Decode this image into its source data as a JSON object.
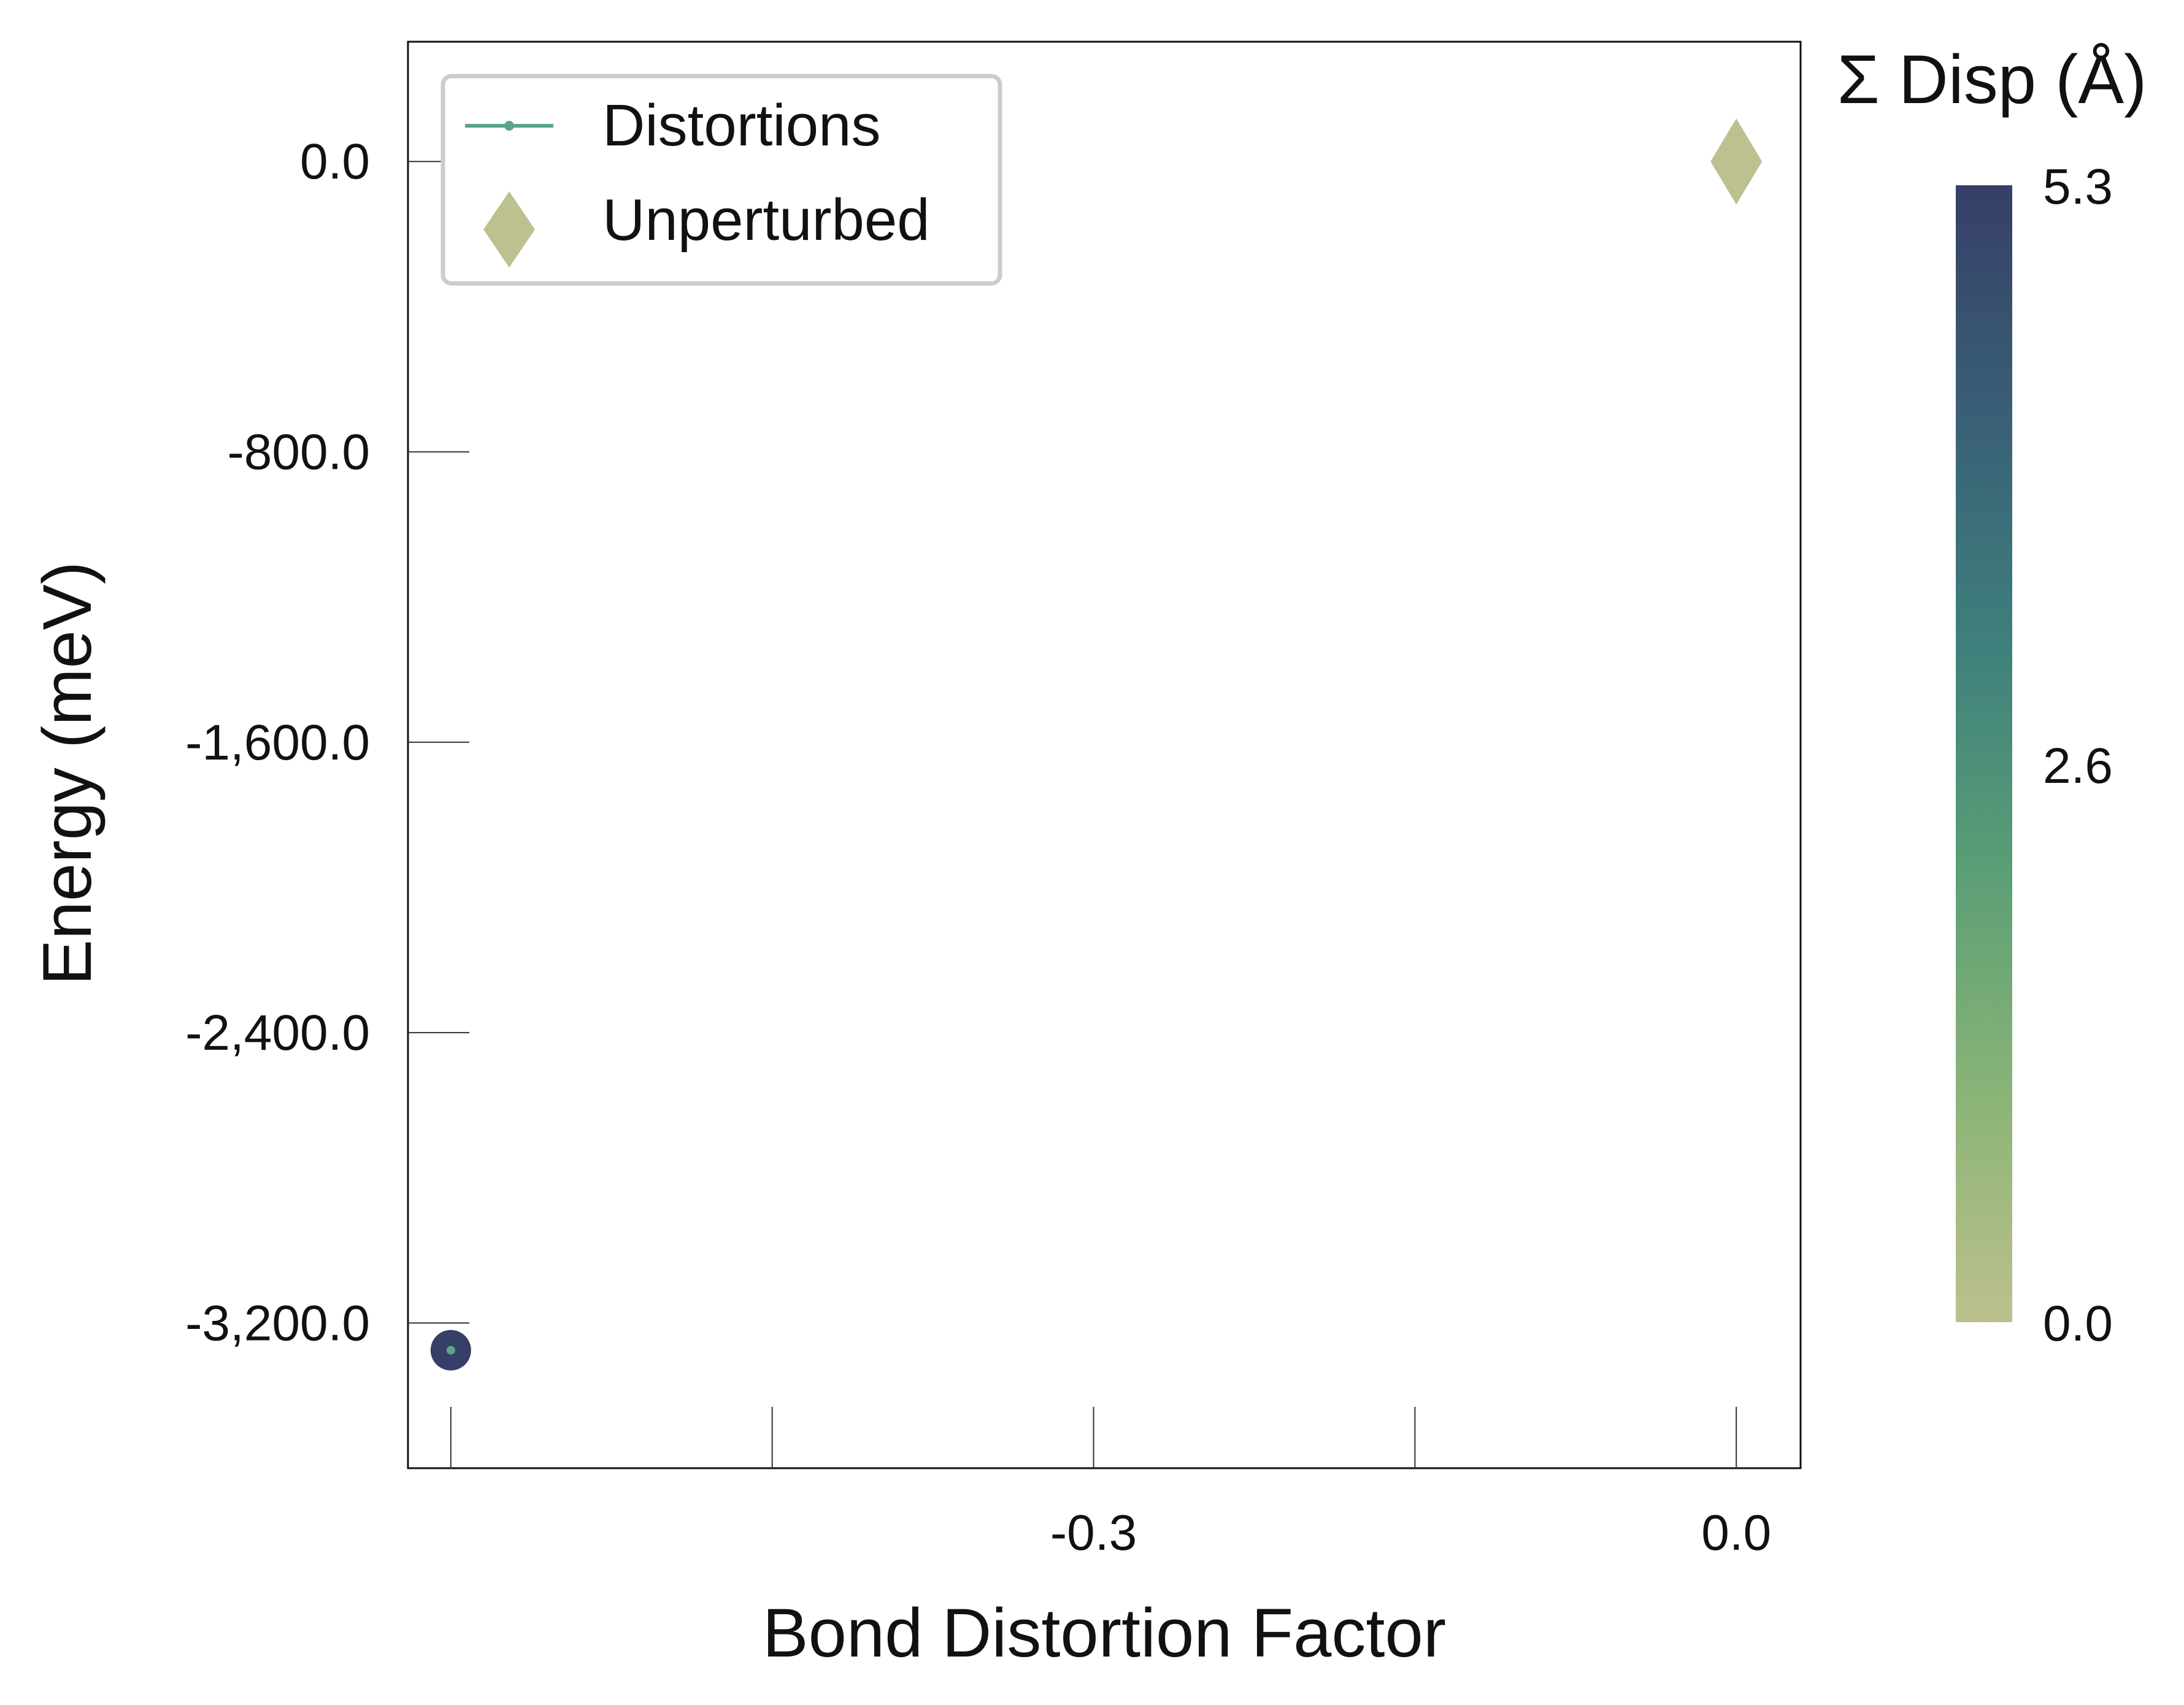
{
  "chart_data": {
    "type": "scatter",
    "title": "",
    "xlabel": "Bond Distortion Factor",
    "ylabel": "Energy (meV)",
    "xlim": [
      -0.62,
      0.03
    ],
    "ylim": [
      -3600,
      330
    ],
    "x_ticks": [
      {
        "value": -0.6,
        "label": ""
      },
      {
        "value": -0.45,
        "label": ""
      },
      {
        "value": -0.3,
        "label": "-0.3"
      },
      {
        "value": -0.15,
        "label": ""
      },
      {
        "value": 0.0,
        "label": "0.0"
      }
    ],
    "y_ticks": [
      {
        "value": 0,
        "label": "0.0"
      },
      {
        "value": -800,
        "label": "-800.0"
      },
      {
        "value": -1600,
        "label": "-1,600.0"
      },
      {
        "value": -2400,
        "label": "-2,400.0"
      },
      {
        "value": -3200,
        "label": "-3,200.0"
      }
    ],
    "series": [
      {
        "name": "Distortions",
        "marker": "circle",
        "line_color": "#5aa58a",
        "points": [
          {
            "x": -0.6,
            "y": -3275,
            "disp": 5.3
          }
        ]
      },
      {
        "name": "Unperturbed",
        "marker": "diamond",
        "points": [
          {
            "x": 0.0,
            "y": 0,
            "disp": 0.0
          }
        ]
      }
    ],
    "legend": {
      "position": "top-left",
      "entries": [
        "Distortions",
        "Unperturbed"
      ]
    },
    "colorbar": {
      "label": "Σ Disp (Å)",
      "range": [
        0.0,
        5.3
      ],
      "ticks": [
        {
          "value": 5.3,
          "label": "5.3"
        },
        {
          "value": 2.6,
          "label": "2.6"
        },
        {
          "value": 0.0,
          "label": "0.0"
        }
      ],
      "colors": [
        "#bdc08f",
        "#8ab477",
        "#5a9e76",
        "#3e7f7c",
        "#395f76",
        "#363f67"
      ]
    },
    "grid": false
  }
}
